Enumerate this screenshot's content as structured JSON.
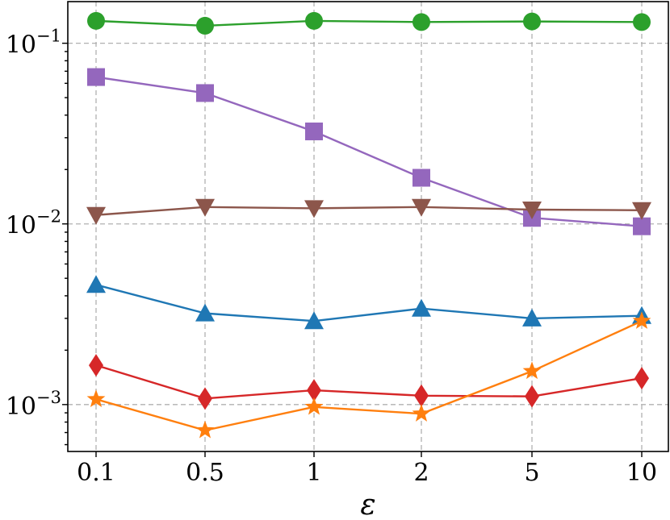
{
  "chart_data": {
    "type": "line",
    "title": "",
    "xlabel": "ε",
    "ylabel": "",
    "yscale": "log",
    "ylim": [
      0.00055,
      0.17
    ],
    "categories": [
      "0.1",
      "0.5",
      "1",
      "2",
      "5",
      "10"
    ],
    "y_ticks": [
      {
        "value": 0.1,
        "base": "10",
        "exp": "−1"
      },
      {
        "value": 0.01,
        "base": "10",
        "exp": "−2"
      },
      {
        "value": 0.001,
        "base": "10",
        "exp": "−3"
      }
    ],
    "grid": true,
    "legend": "none",
    "series": [
      {
        "name": "green-circle",
        "color": "#2ca02c",
        "marker": "circle",
        "values": [
          0.133,
          0.125,
          0.133,
          0.131,
          0.132,
          0.131
        ]
      },
      {
        "name": "purple-square",
        "color": "#9467bd",
        "marker": "square",
        "values": [
          0.065,
          0.053,
          0.0325,
          0.018,
          0.0108,
          0.0097
        ]
      },
      {
        "name": "brown-triangle-down",
        "color": "#8c564b",
        "marker": "triangle-down",
        "values": [
          0.0112,
          0.0124,
          0.0122,
          0.0124,
          0.012,
          0.0119
        ]
      },
      {
        "name": "blue-triangle-up",
        "color": "#1f77b4",
        "marker": "triangle-up",
        "values": [
          0.0046,
          0.0032,
          0.0029,
          0.0034,
          0.003,
          0.0031
        ]
      },
      {
        "name": "red-diamond",
        "color": "#d62728",
        "marker": "diamond",
        "values": [
          0.00165,
          0.00108,
          0.0012,
          0.00112,
          0.00111,
          0.0014
        ]
      },
      {
        "name": "orange-star",
        "color": "#ff7f0e",
        "marker": "star",
        "values": [
          0.00107,
          0.00072,
          0.00097,
          0.00089,
          0.00153,
          0.0029
        ]
      }
    ]
  }
}
